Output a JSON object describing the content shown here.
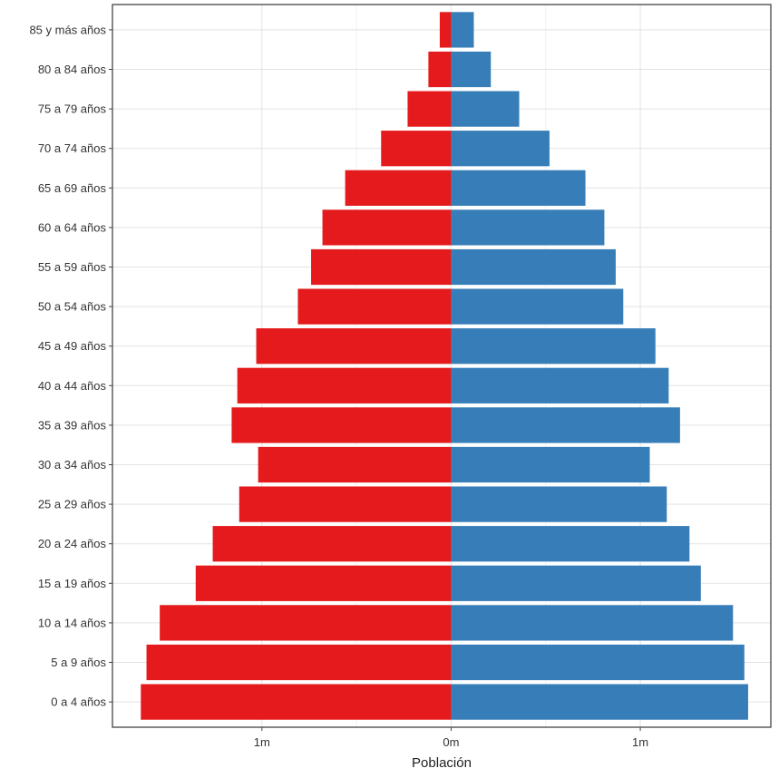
{
  "chart_data": {
    "type": "bar",
    "orientation": "horizontal",
    "layout": "population-pyramid",
    "xlabel": "Población",
    "ylabel": "",
    "title": "",
    "x_ticks": [
      {
        "value": -1000000,
        "label": "1m"
      },
      {
        "value": 0,
        "label": "0m"
      },
      {
        "value": 1000000,
        "label": "1m"
      }
    ],
    "xlim": [
      -1790000,
      1690000
    ],
    "grid": true,
    "legend": "none",
    "categories": [
      "0 a 4 años",
      "5 a 9 años",
      "10 a 14 años",
      "15 a 19 años",
      "20 a 24 años",
      "25 a 29 años",
      "30 a 34 años",
      "35 a 39 años",
      "40 a 44 años",
      "45 a 49 años",
      "50 a 54 años",
      "55 a 59 años",
      "60 a 64 años",
      "65 a 69 años",
      "70 a 74 años",
      "75 a 79 años",
      "80 a 84 años",
      "85 y más años"
    ],
    "series": [
      {
        "color": "#e41a1c",
        "side": "left",
        "values": [
          1640000,
          1610000,
          1540000,
          1350000,
          1260000,
          1120000,
          1020000,
          1160000,
          1130000,
          1030000,
          810000,
          740000,
          680000,
          560000,
          370000,
          230000,
          120000,
          60000
        ]
      },
      {
        "color": "#377eb8",
        "side": "right",
        "values": [
          1570000,
          1550000,
          1490000,
          1320000,
          1260000,
          1140000,
          1050000,
          1210000,
          1150000,
          1080000,
          910000,
          870000,
          810000,
          710000,
          520000,
          360000,
          210000,
          120000
        ]
      }
    ]
  }
}
